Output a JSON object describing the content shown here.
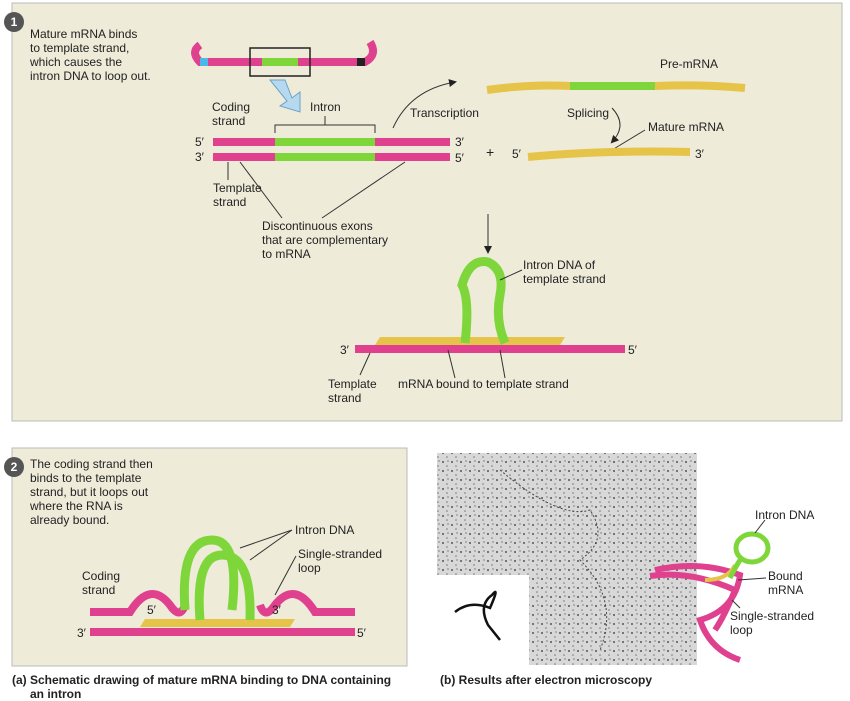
{
  "panel1": {
    "step": "1",
    "note": [
      "Mature mRNA binds",
      "to template strand,",
      "which causes the",
      "intron DNA to loop out."
    ],
    "coding_strand": [
      "Coding",
      "strand"
    ],
    "intron": "Intron",
    "ends": [
      "5′",
      "3′",
      "3′",
      "5′"
    ],
    "template_strand": [
      "Template",
      "strand"
    ],
    "exons_note": [
      "Discontinuous exons",
      "that are complementary",
      "to mRNA"
    ],
    "transcription": "Transcription",
    "pre_mrna": "Pre-mRNA",
    "splicing": "Splicing",
    "mature_mrna": "Mature mRNA",
    "plus": "+",
    "mrna_ends": [
      "5′",
      "3′"
    ],
    "intron_dna": [
      "Intron DNA of",
      "template strand"
    ],
    "loop_ends": [
      "3′",
      "5′"
    ],
    "loop_template": [
      "Template",
      "strand"
    ],
    "bound_label": "mRNA bound to template strand"
  },
  "panel2": {
    "step": "2",
    "note": [
      "The coding strand then",
      "binds to the template",
      "strand, but it loops out",
      "where the RNA is",
      "already bound."
    ],
    "intron_dna": "Intron DNA",
    "single_loop": [
      "Single-stranded",
      "loop"
    ],
    "coding_strand": [
      "Coding",
      "strand"
    ],
    "inner_ends": [
      "5′",
      "3′"
    ],
    "outer_ends": [
      "3′",
      "5′"
    ]
  },
  "panel_b": {
    "intron_dna": "Intron DNA",
    "bound_mrna": [
      "Bound",
      "mRNA"
    ],
    "single_loop": [
      "Single-stranded",
      "loop"
    ]
  },
  "captions": {
    "a": [
      "(a) Schematic drawing of mature mRNA binding to DNA containing",
      "an intron"
    ],
    "b": "(b) Results after electron microscopy"
  }
}
